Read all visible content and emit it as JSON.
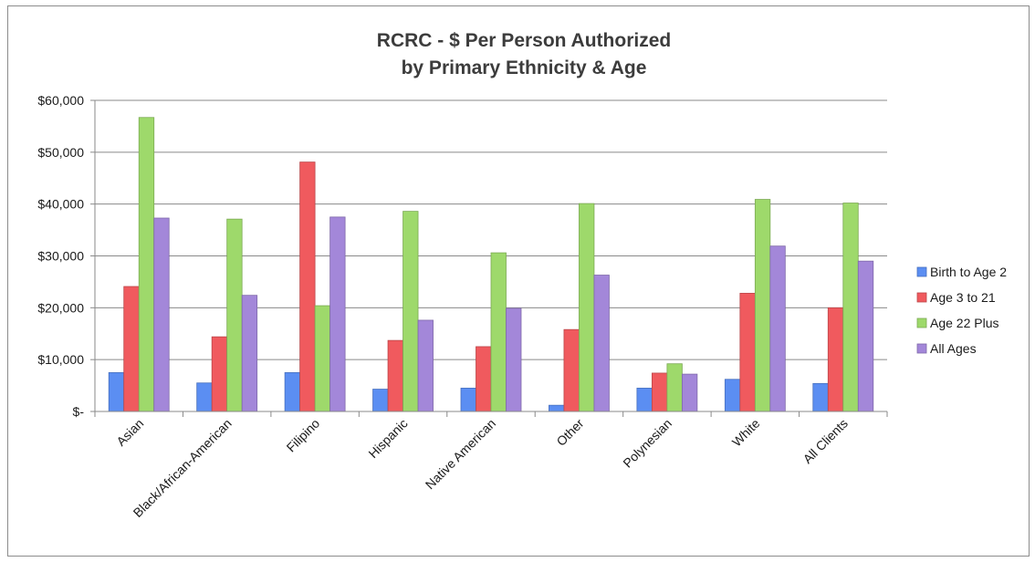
{
  "chart_data": {
    "type": "bar",
    "title": "RCRC - $ Per Person Authorized",
    "subtitle": "by Primary Ethnicity & Age",
    "xlabel": "",
    "ylabel": "",
    "ylim": [
      0,
      60000
    ],
    "y_ticks": [
      0,
      10000,
      20000,
      30000,
      40000,
      50000,
      60000
    ],
    "y_tick_labels": [
      "$-",
      "$10,000",
      "$20,000",
      "$30,000",
      "$40,000",
      "$50,000",
      "$60,000"
    ],
    "grid": true,
    "legend_position": "right",
    "categories": [
      "Asian",
      "Black/African-American",
      "Filipino",
      "Hispanic",
      "Native American",
      "Other",
      "Polynesian",
      "White",
      "All Clients"
    ],
    "series": [
      {
        "name": "Birth to Age 2",
        "color": "#5b8ef2",
        "values": [
          7500,
          5500,
          7500,
          4300,
          4500,
          1200,
          4500,
          6200,
          5400
        ]
      },
      {
        "name": "Age 3 to 21",
        "color": "#f05a5e",
        "values": [
          24100,
          14400,
          48100,
          13700,
          12500,
          15800,
          7400,
          22800,
          20000
        ]
      },
      {
        "name": "Age 22 Plus",
        "color": "#9ed96b",
        "values": [
          56700,
          37100,
          20400,
          38600,
          30600,
          40100,
          9200,
          40900,
          40200
        ]
      },
      {
        "name": "All Ages",
        "color": "#a387d9",
        "values": [
          37300,
          22400,
          37500,
          17600,
          19900,
          26300,
          7200,
          31900,
          29000
        ]
      }
    ]
  }
}
